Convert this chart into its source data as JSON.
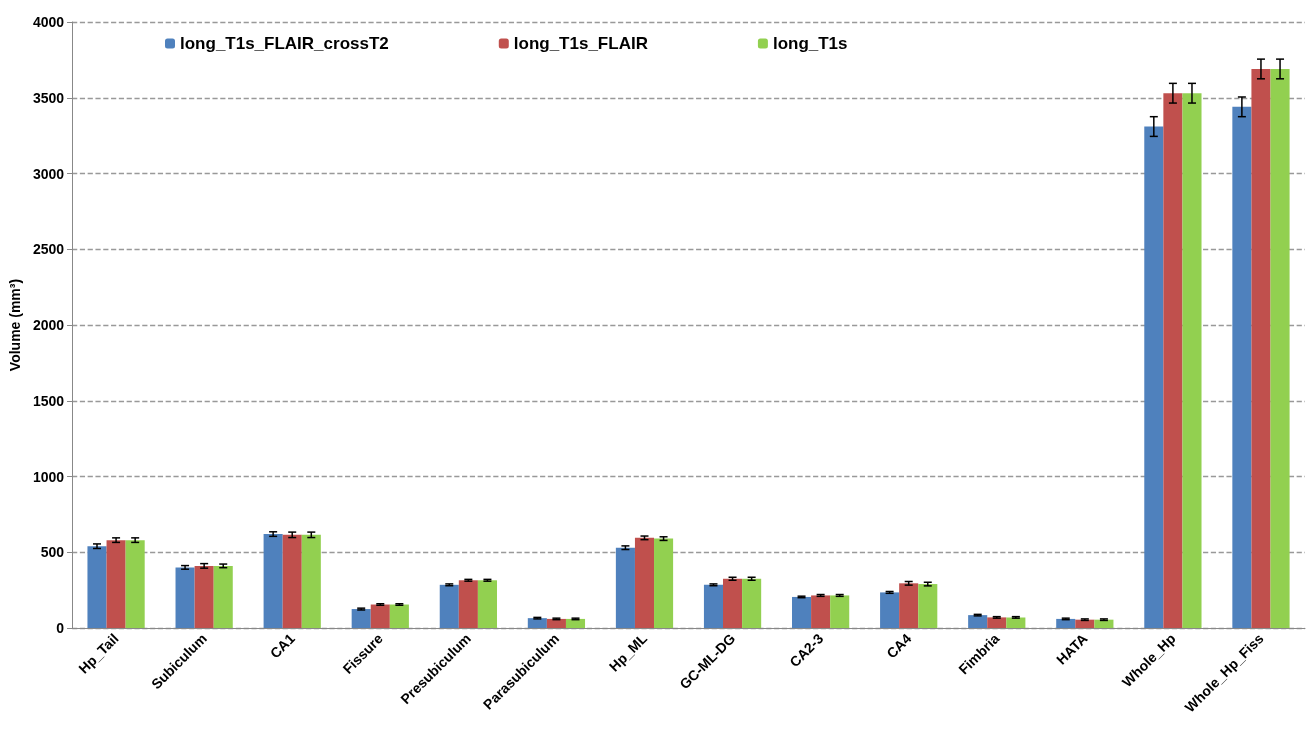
{
  "chart_data": {
    "type": "bar",
    "ylabel": "Volume (mm³)",
    "categories": [
      "Hp_Tail",
      "Subiculum",
      "CA1",
      "Fissure",
      "Presubiculum",
      "Parasubiculum",
      "Hp_ML",
      "GC-ML-DG",
      "CA2-3",
      "CA4",
      "Fimbria",
      "HATA",
      "Whole_Hp",
      "Whole_Hp_Fiss"
    ],
    "series": [
      {
        "name": "long_T1s_FLAIR_crossT2",
        "color": "#4f81bd",
        "values": [
          540,
          400,
          620,
          125,
          285,
          65,
          530,
          285,
          205,
          235,
          85,
          60,
          3310,
          3440
        ],
        "errors": [
          15,
          12,
          15,
          6,
          6,
          5,
          12,
          6,
          5,
          6,
          5,
          5,
          65,
          65
        ]
      },
      {
        "name": "long_T1s_FLAIR",
        "color": "#c0504d",
        "values": [
          580,
          410,
          615,
          155,
          315,
          60,
          595,
          325,
          215,
          295,
          70,
          55,
          3530,
          3690
        ],
        "errors": [
          15,
          15,
          18,
          5,
          6,
          5,
          12,
          10,
          6,
          12,
          5,
          5,
          65,
          65
        ]
      },
      {
        "name": "long_T1s",
        "color": "#92d050",
        "values": [
          580,
          410,
          615,
          155,
          315,
          60,
          590,
          325,
          215,
          290,
          70,
          55,
          3530,
          3690
        ],
        "errors": [
          15,
          12,
          18,
          5,
          6,
          5,
          12,
          10,
          6,
          12,
          5,
          5,
          65,
          65
        ]
      }
    ],
    "ylim": [
      0,
      4000
    ],
    "yticks": [
      0,
      500,
      1000,
      1500,
      2000,
      2500,
      3000,
      3500,
      4000
    ],
    "grid": "y",
    "legend": "top left"
  }
}
